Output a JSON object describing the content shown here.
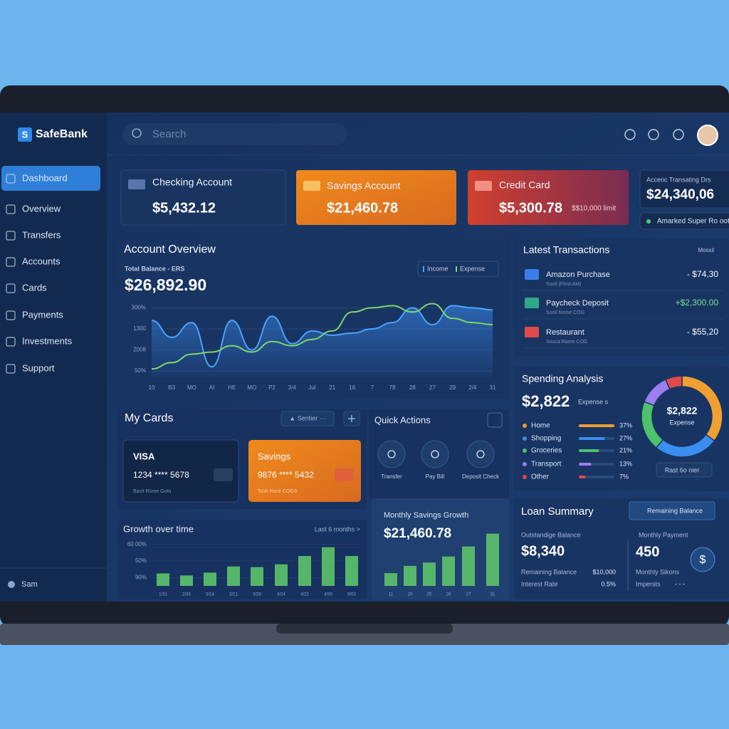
{
  "brand": "SafeBank",
  "brand_icon": "S",
  "search": "Search",
  "nav": [
    "Dashboard",
    "Overview",
    "Transfers",
    "Accounts",
    "Cards",
    "Payments",
    "Investments",
    "Support"
  ],
  "user": "Sam",
  "accounts": [
    {
      "name": "Checking Account",
      "balance": "$5,432.12"
    },
    {
      "name": "Savings Account",
      "balance": "$21,460.78"
    },
    {
      "name": "Credit Card",
      "balance": "$5,300.78",
      "limit": "$$10,000 limit"
    }
  ],
  "recent": {
    "label": "Accenc Transating Drs",
    "amount": "$24,340,06",
    "status": "Amarked Super Ro oot"
  },
  "overview": {
    "title": "Account Overview",
    "balance_label": "Total Balance - ERS",
    "balance": "$26,892.90",
    "chart": {
      "type": "line",
      "categories": [
        "10",
        "B3",
        "MO",
        "AI",
        "HE",
        "MO",
        "P2",
        "3/4",
        "Jul",
        "21",
        "16",
        "7",
        "78",
        "28",
        "27",
        "29",
        "2/4",
        "31"
      ],
      "series": [
        {
          "name": "Income",
          "color": "#4aa3ff",
          "values": [
            2.4,
            1.6,
            2.3,
            0.2,
            2.4,
            1.0,
            2.6,
            1.3,
            1.9,
            1.7,
            1.8,
            2.0,
            2.3,
            3.0,
            2.2,
            3.1,
            3.0,
            2.9
          ]
        },
        {
          "name": "Expense",
          "color": "#7fd66a",
          "values": [
            0.1,
            0.4,
            0.8,
            0.9,
            1.2,
            0.9,
            1.4,
            1.2,
            1.5,
            1.9,
            2.8,
            3.0,
            3.1,
            2.8,
            3.2,
            2.5,
            2.3,
            2.2
          ]
        }
      ],
      "ylim": [
        -0.3,
        3.25
      ],
      "yticks": [
        {
          "value": 0,
          "label": "50%"
        },
        {
          "value": 1,
          "label": "2008"
        },
        {
          "value": 2,
          "label": "1300"
        },
        {
          "value": 3,
          "label": "300%"
        }
      ],
      "grid": true
    }
  },
  "transactions": {
    "title": "Latest Transactions",
    "link": "Mossil",
    "rows": [
      {
        "name": "Amazon Purchase",
        "detail": "Sooli (Finst AM)",
        "amount": "- $74,30",
        "color": "#3a7ee8"
      },
      {
        "name": "Paycheck Deposit",
        "detail": "Sooli Nome COG",
        "amount": "+$2,300.00",
        "color": "#2fa88a"
      },
      {
        "name": "Restaurant",
        "detail": "Souca Rame COG",
        "amount": "- $55,20",
        "color": "#e04a4a"
      }
    ]
  },
  "spending": {
    "title": "Spending Analysis",
    "total": "$2,822",
    "total_label": "Expense s",
    "center_total": "$2,822",
    "center_label": "Expense",
    "filter": "Rast 6o nier",
    "chart": {
      "type": "pie",
      "categories": [
        "Home",
        "Shopping",
        "Groceries",
        "Transport",
        "Other"
      ],
      "values": [
        37,
        27,
        21,
        13,
        7
      ],
      "value_labels": [
        "37%",
        "27%",
        "21%",
        "13%",
        "7%"
      ],
      "colors": [
        "#f0a030",
        "#3a8ef0",
        "#4cc36a",
        "#9a7ff0",
        "#e04a4a"
      ]
    }
  },
  "cards": {
    "title": "My Cards",
    "filter": "▲ Sentier ···",
    "items": [
      {
        "brand": "VISA",
        "number": "1234 **** 5678",
        "holder": "Basit Rome Gotü"
      },
      {
        "brand": "Savings",
        "number": "9876 **** 5432",
        "holder": "Tosit Roce COGS"
      }
    ]
  },
  "quick": {
    "title": "Quick Actions",
    "actions": [
      "Transfer",
      "Pay Bill",
      "Deposit Check"
    ]
  },
  "growth": {
    "title": "Growth over time",
    "range": "Last 6 months >",
    "chart": {
      "type": "bar",
      "categories": [
        "1/31",
        "2/35",
        "3/14",
        "3/21",
        "3/28",
        "4/24",
        "4/22",
        "4/30",
        "5/03"
      ],
      "values": [
        0.75,
        0.63,
        0.8,
        1.17,
        1.13,
        1.3,
        1.8,
        2.33,
        1.8
      ],
      "color": "#5cc46a",
      "ylim": [
        0,
        2.7
      ],
      "yticks": [
        {
          "value": 0.5,
          "label": "90%"
        },
        {
          "value": 1.5,
          "label": "50%"
        },
        {
          "value": 2.5,
          "label": "60.00%"
        }
      ]
    }
  },
  "savings_growth": {
    "title": "Monthly Savings Growth",
    "amount": "$21,460.78",
    "chart": {
      "type": "bar",
      "categories": [
        "11",
        "20",
        "25",
        "26",
        "27",
        "31"
      ],
      "values": [
        23,
        36,
        42,
        53,
        71,
        94
      ],
      "color": "#5cc46a",
      "ylim": [
        0,
        100
      ]
    }
  },
  "loan": {
    "title": "Loan Summary",
    "button": "Remaining Balance",
    "outstanding_label": "Outstandige Balance",
    "outstanding": "$8,340",
    "remaining_label": "Remaining Balance",
    "remaining": "$10,000",
    "rate_label": "Interest Rate",
    "rate": "0.5%",
    "payment_label": "Monthly Payment",
    "payment": "450",
    "extra_label": "Monthly Sikons",
    "interest_label": "Impersts",
    "interest": "- - -",
    "icon": "$"
  }
}
